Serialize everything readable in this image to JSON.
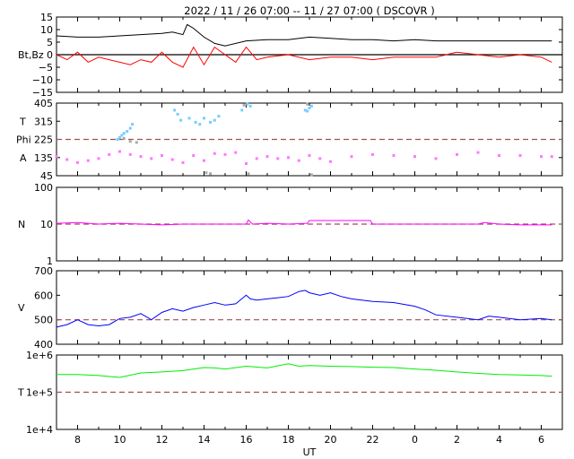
{
  "chart_data": [
    {
      "type": "line",
      "title": "2022 / 11 / 26   07:00 -- 11 / 27  07:00 ( DSCOVR )",
      "panel_label": "Bt,Bz",
      "ylim": [
        -15,
        15
      ],
      "yticks": [
        "15",
        "10",
        "5",
        "0",
        "−5",
        "−10",
        "−15"
      ],
      "reference_line": 0,
      "series": [
        {
          "color": "#000000",
          "x": [
            7.0,
            8.0,
            9.0,
            10.0,
            11.0,
            12.0,
            12.5,
            13.0,
            13.2,
            13.5,
            14.0,
            14.5,
            15.0,
            16.0,
            17.0,
            18.0,
            19.0,
            20.0,
            21.0,
            22.0,
            23.0,
            0.0,
            1.0,
            2.0,
            3.0,
            4.0,
            5.0,
            6.0,
            6.5
          ],
          "values": [
            7.5,
            7.0,
            7.0,
            7.5,
            8.0,
            8.5,
            9.0,
            8.0,
            12.0,
            10.5,
            7.0,
            4.5,
            3.5,
            5.5,
            6.0,
            6.0,
            7.0,
            6.5,
            6.0,
            6.0,
            5.5,
            6.0,
            5.5,
            5.5,
            5.5,
            5.5,
            5.5,
            5.5,
            5.5
          ]
        },
        {
          "color": "#ff0000",
          "x": [
            7.0,
            7.5,
            8.0,
            8.5,
            9.0,
            9.5,
            10.0,
            10.5,
            11.0,
            11.5,
            12.0,
            12.5,
            13.0,
            13.5,
            14.0,
            14.5,
            15.0,
            15.5,
            16.0,
            16.5,
            17.0,
            18.0,
            19.0,
            20.0,
            21.0,
            22.0,
            23.0,
            0.0,
            1.0,
            2.0,
            3.0,
            4.0,
            5.0,
            6.0,
            6.5
          ],
          "values": [
            0,
            -2,
            1,
            -3,
            -1,
            -2,
            -3,
            -4,
            -2,
            -3,
            1,
            -3,
            -5,
            3,
            -4,
            3,
            0,
            -3,
            3,
            -2,
            -1,
            0,
            -2,
            -1,
            -1,
            -2,
            -1,
            -1,
            -1,
            1,
            0,
            -1,
            0,
            -1,
            -3
          ]
        }
      ]
    },
    {
      "type": "scatter",
      "axis_labels": {
        "theta": "T",
        "phi": "Phi",
        "angle": "A"
      },
      "ylim": [
        45,
        405
      ],
      "yticks": [
        "405",
        "315",
        "225",
        "135",
        "45"
      ],
      "reference_line": 225,
      "series": [
        {
          "color": "#ff77ff",
          "x": [
            7.0,
            7.5,
            8.0,
            8.5,
            9.0,
            9.5,
            10.0,
            10.5,
            11.0,
            11.5,
            12.0,
            12.5,
            13.0,
            13.5,
            14.0,
            14.5,
            15.0,
            15.5,
            16.0,
            16.5,
            17.0,
            17.5,
            18.0,
            18.5,
            19.0,
            19.5,
            20.0,
            21.0,
            22.0,
            23.0,
            0.0,
            1.0,
            2.0,
            3.0,
            4.0,
            5.0,
            6.0,
            6.5
          ],
          "values": [
            140,
            125,
            110,
            120,
            130,
            150,
            165,
            150,
            140,
            130,
            145,
            125,
            110,
            145,
            120,
            155,
            150,
            160,
            105,
            130,
            140,
            130,
            135,
            120,
            145,
            130,
            115,
            140,
            150,
            145,
            140,
            130,
            150,
            160,
            145,
            145,
            140,
            140
          ]
        },
        {
          "color": "#77ccff",
          "x": [
            9.9,
            10.0,
            10.1,
            10.2,
            10.35,
            10.5,
            10.6,
            12.6,
            12.75,
            12.9,
            13.3,
            13.6,
            13.8,
            14.0,
            14.3,
            14.5,
            14.7,
            15.8,
            16.05,
            16.2,
            18.8,
            18.9,
            19.0,
            19.1
          ],
          "values": [
            225,
            235,
            245,
            255,
            265,
            280,
            300,
            370,
            350,
            320,
            330,
            310,
            300,
            330,
            310,
            320,
            340,
            370,
            400,
            390,
            370,
            365,
            380,
            390
          ]
        },
        {
          "color": "#aaaaaa",
          "x": [
            10.2,
            10.5,
            10.8,
            14.1,
            14.3,
            15.9,
            16.1,
            18.9,
            19.1
          ],
          "values": [
            230,
            215,
            210,
            60,
            55,
            395,
            55,
            400,
            50
          ]
        }
      ]
    },
    {
      "type": "line",
      "axis_label": "N",
      "scale": "log",
      "ylim": [
        1,
        100
      ],
      "yticks": [
        "100",
        "10",
        "1"
      ],
      "reference_line": 10,
      "series": [
        {
          "color": "#ff00ff",
          "x": [
            7.0,
            8.0,
            9.0,
            10.0,
            11.0,
            12.0,
            13.0,
            14.0,
            15.0,
            16.0,
            16.1,
            16.3,
            17.0,
            18.0,
            18.9,
            19.0,
            20.0,
            21.0,
            21.9,
            22.0,
            23.0,
            0.0,
            1.0,
            2.0,
            3.0,
            3.3,
            4.0,
            5.0,
            6.0,
            6.5
          ],
          "values": [
            10.5,
            11,
            10,
            10.5,
            10,
            9.5,
            10,
            10,
            10,
            10,
            13,
            10,
            10.5,
            10,
            10.5,
            12.5,
            12.5,
            12.5,
            12.5,
            10,
            10,
            10,
            10,
            10,
            10,
            11,
            10,
            9.5,
            9.5,
            9.5
          ]
        }
      ]
    },
    {
      "type": "line",
      "axis_label": "V",
      "ylim": [
        400,
        700
      ],
      "yticks": [
        "700",
        "600",
        "500",
        "400"
      ],
      "reference_line": 500,
      "series": [
        {
          "color": "#0000ff",
          "x": [
            7.0,
            7.5,
            8.0,
            8.5,
            9.0,
            9.5,
            10.0,
            10.5,
            11.0,
            11.5,
            12.0,
            12.5,
            13.0,
            13.5,
            14.0,
            14.5,
            15.0,
            15.5,
            16.0,
            16.2,
            16.5,
            17.0,
            17.5,
            18.0,
            18.5,
            18.8,
            19.0,
            19.5,
            20.0,
            20.5,
            21.0,
            22.0,
            23.0,
            0.0,
            0.5,
            1.0,
            2.0,
            3.0,
            3.5,
            4.0,
            5.0,
            6.0,
            6.5
          ],
          "values": [
            470,
            480,
            500,
            480,
            475,
            480,
            505,
            510,
            525,
            500,
            530,
            545,
            535,
            550,
            560,
            570,
            560,
            565,
            600,
            585,
            580,
            585,
            590,
            595,
            615,
            620,
            610,
            600,
            610,
            595,
            585,
            575,
            570,
            555,
            540,
            520,
            510,
            500,
            515,
            510,
            500,
            505,
            500
          ]
        }
      ]
    },
    {
      "type": "line",
      "axis_label": "T",
      "scale": "log",
      "ylim": [
        10000,
        1000000
      ],
      "yticks": [
        "1e+6",
        "1e+5",
        "1e+4"
      ],
      "reference_line": 100000,
      "series": [
        {
          "color": "#00ee00",
          "x": [
            7.0,
            8.0,
            9.0,
            10.0,
            11.0,
            12.0,
            13.0,
            14.0,
            14.5,
            15.0,
            16.0,
            17.0,
            18.0,
            18.5,
            19.0,
            20.0,
            21.0,
            22.0,
            23.0,
            0.0,
            1.0,
            2.0,
            3.0,
            4.0,
            5.0,
            6.0,
            6.5
          ],
          "values": [
            300000,
            300000,
            280000,
            250000,
            330000,
            350000,
            380000,
            460000,
            450000,
            420000,
            500000,
            450000,
            580000,
            500000,
            520000,
            500000,
            490000,
            470000,
            460000,
            420000,
            390000,
            350000,
            320000,
            300000,
            290000,
            280000,
            270000
          ]
        }
      ]
    }
  ],
  "x_axis": {
    "label": "UT",
    "ticks": [
      "8",
      "10",
      "12",
      "14",
      "16",
      "18",
      "20",
      "22",
      "0",
      "2",
      "4",
      "6"
    ]
  }
}
